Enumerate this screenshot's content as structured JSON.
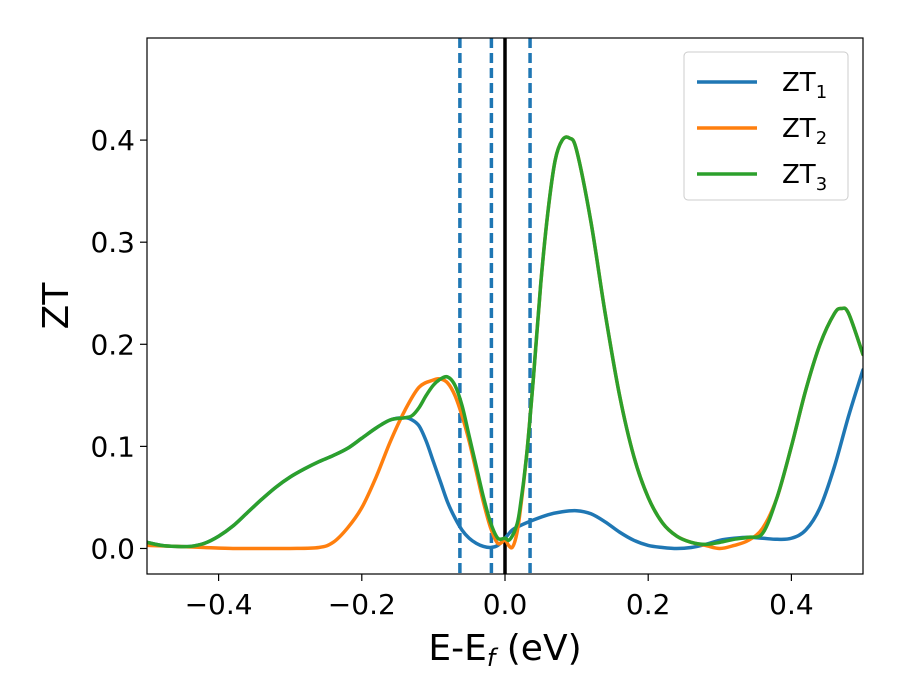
{
  "chart_data": {
    "type": "line",
    "xlabel": "E-E",
    "xlabel_sub": "f",
    "xlabel_unit": " (eV)",
    "ylabel": "ZT",
    "xlim": [
      -0.5,
      0.5
    ],
    "ylim": [
      -0.025,
      0.5
    ],
    "xticks": [
      -0.4,
      -0.2,
      0.0,
      0.2,
      0.4
    ],
    "xtick_labels": [
      "−0.4",
      "−0.2",
      "0.0",
      "0.2",
      "0.4"
    ],
    "yticks": [
      0.0,
      0.1,
      0.2,
      0.3,
      0.4
    ],
    "ytick_labels": [
      "0.0",
      "0.1",
      "0.2",
      "0.3",
      "0.4"
    ],
    "grid": false,
    "legend_position": "top-right",
    "vertical_lines": [
      {
        "x": -0.063,
        "style": "dashed",
        "color": "#1f77b4"
      },
      {
        "x": -0.019,
        "style": "dashed",
        "color": "#1f77b4"
      },
      {
        "x": 0.0,
        "style": "solid",
        "color": "#000000"
      },
      {
        "x": 0.035,
        "style": "dashed",
        "color": "#1f77b4"
      }
    ],
    "series": [
      {
        "name": "ZT",
        "name_sub": "1",
        "color": "#1f77b4",
        "x": [
          -0.5,
          -0.48,
          -0.46,
          -0.44,
          -0.42,
          -0.4,
          -0.38,
          -0.36,
          -0.34,
          -0.32,
          -0.3,
          -0.28,
          -0.26,
          -0.24,
          -0.22,
          -0.2,
          -0.18,
          -0.16,
          -0.14,
          -0.13,
          -0.12,
          -0.11,
          -0.1,
          -0.09,
          -0.08,
          -0.07,
          -0.06,
          -0.05,
          -0.04,
          -0.03,
          -0.02,
          -0.01,
          0.0,
          0.01,
          0.02,
          0.04,
          0.06,
          0.08,
          0.1,
          0.12,
          0.14,
          0.16,
          0.18,
          0.2,
          0.22,
          0.24,
          0.26,
          0.28,
          0.3,
          0.32,
          0.34,
          0.36,
          0.38,
          0.4,
          0.42,
          0.44,
          0.46,
          0.48,
          0.5
        ],
        "y": [
          0.006,
          0.003,
          0.002,
          0.002,
          0.005,
          0.012,
          0.022,
          0.035,
          0.048,
          0.06,
          0.07,
          0.078,
          0.085,
          0.091,
          0.098,
          0.108,
          0.118,
          0.126,
          0.128,
          0.126,
          0.12,
          0.105,
          0.085,
          0.065,
          0.045,
          0.03,
          0.018,
          0.01,
          0.005,
          0.002,
          0.001,
          0.003,
          0.01,
          0.018,
          0.022,
          0.028,
          0.033,
          0.036,
          0.037,
          0.034,
          0.026,
          0.016,
          0.008,
          0.003,
          0.001,
          0.0,
          0.001,
          0.004,
          0.008,
          0.01,
          0.011,
          0.01,
          0.009,
          0.01,
          0.018,
          0.04,
          0.08,
          0.13,
          0.175
        ]
      },
      {
        "name": "ZT",
        "name_sub": "2",
        "color": "#ff7f0e",
        "x": [
          -0.5,
          -0.46,
          -0.42,
          -0.38,
          -0.34,
          -0.3,
          -0.26,
          -0.24,
          -0.22,
          -0.2,
          -0.18,
          -0.16,
          -0.14,
          -0.12,
          -0.1,
          -0.09,
          -0.08,
          -0.07,
          -0.06,
          -0.05,
          -0.04,
          -0.03,
          -0.02,
          -0.01,
          0.0,
          0.005,
          0.01,
          0.015,
          0.02,
          0.03,
          0.04,
          0.05,
          0.06,
          0.07,
          0.08,
          0.09,
          0.1,
          0.12,
          0.14,
          0.16,
          0.18,
          0.2,
          0.22,
          0.24,
          0.26,
          0.28,
          0.3,
          0.32,
          0.34,
          0.36,
          0.38,
          0.4,
          0.42,
          0.44,
          0.46,
          0.47,
          0.48,
          0.5
        ],
        "y": [
          0.003,
          0.002,
          0.001,
          0.0,
          0.0,
          0.0,
          0.001,
          0.006,
          0.02,
          0.04,
          0.07,
          0.105,
          0.135,
          0.158,
          0.165,
          0.166,
          0.162,
          0.15,
          0.13,
          0.105,
          0.075,
          0.045,
          0.02,
          0.005,
          0.008,
          0.003,
          0.001,
          0.01,
          0.03,
          0.09,
          0.17,
          0.26,
          0.33,
          0.38,
          0.4,
          0.402,
          0.39,
          0.32,
          0.23,
          0.15,
          0.09,
          0.05,
          0.025,
          0.012,
          0.006,
          0.003,
          0.0,
          0.003,
          0.008,
          0.02,
          0.05,
          0.1,
          0.155,
          0.2,
          0.23,
          0.235,
          0.23,
          0.19
        ]
      },
      {
        "name": "ZT",
        "name_sub": "3",
        "color": "#2ca02c",
        "x": [
          -0.5,
          -0.48,
          -0.46,
          -0.44,
          -0.42,
          -0.4,
          -0.38,
          -0.36,
          -0.34,
          -0.32,
          -0.3,
          -0.28,
          -0.26,
          -0.24,
          -0.22,
          -0.2,
          -0.18,
          -0.16,
          -0.14,
          -0.13,
          -0.12,
          -0.11,
          -0.1,
          -0.09,
          -0.08,
          -0.07,
          -0.06,
          -0.05,
          -0.04,
          -0.03,
          -0.02,
          -0.01,
          0.0,
          0.005,
          0.01,
          0.015,
          0.02,
          0.03,
          0.04,
          0.05,
          0.06,
          0.07,
          0.08,
          0.09,
          0.1,
          0.12,
          0.14,
          0.16,
          0.18,
          0.2,
          0.22,
          0.24,
          0.26,
          0.28,
          0.3,
          0.32,
          0.34,
          0.36,
          0.38,
          0.4,
          0.42,
          0.44,
          0.46,
          0.47,
          0.48,
          0.5
        ],
        "y": [
          0.006,
          0.003,
          0.002,
          0.002,
          0.005,
          0.012,
          0.022,
          0.035,
          0.048,
          0.06,
          0.07,
          0.078,
          0.085,
          0.091,
          0.098,
          0.108,
          0.118,
          0.126,
          0.128,
          0.13,
          0.138,
          0.15,
          0.16,
          0.166,
          0.168,
          0.16,
          0.14,
          0.11,
          0.08,
          0.05,
          0.025,
          0.01,
          0.01,
          0.008,
          0.012,
          0.02,
          0.035,
          0.09,
          0.17,
          0.26,
          0.33,
          0.38,
          0.4,
          0.402,
          0.39,
          0.32,
          0.23,
          0.15,
          0.09,
          0.05,
          0.025,
          0.012,
          0.006,
          0.004,
          0.006,
          0.009,
          0.011,
          0.015,
          0.05,
          0.1,
          0.155,
          0.2,
          0.23,
          0.235,
          0.23,
          0.19
        ]
      }
    ]
  }
}
